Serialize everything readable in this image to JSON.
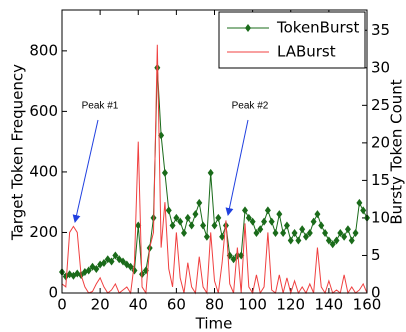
{
  "chart_data": {
    "type": "line",
    "xlabel": "Time",
    "ylabel": "Target Token Frequency",
    "y2label": "Bursty Token Count",
    "x": [
      0,
      2,
      4,
      6,
      8,
      10,
      12,
      14,
      16,
      18,
      20,
      22,
      24,
      26,
      28,
      30,
      32,
      34,
      36,
      38,
      40,
      42,
      44,
      46,
      48,
      50,
      52,
      54,
      56,
      58,
      60,
      62,
      64,
      66,
      68,
      70,
      72,
      74,
      76,
      78,
      80,
      82,
      84,
      86,
      88,
      90,
      92,
      94,
      96,
      98,
      100,
      102,
      104,
      106,
      108,
      110,
      112,
      114,
      116,
      118,
      120,
      122,
      124,
      126,
      128,
      130,
      132,
      134,
      136,
      138,
      140,
      142,
      144,
      146,
      148,
      150,
      152,
      154,
      156,
      158,
      160
    ],
    "series": [
      {
        "name": "TokenBurst",
        "color": "#1a6b1a",
        "axis": "y2",
        "marker": "diamond",
        "values": [
          2.8,
          2.2,
          2.5,
          2.3,
          2.6,
          2.4,
          2.8,
          3,
          3.5,
          3.2,
          3.8,
          4,
          4.5,
          4.2,
          5,
          4.5,
          4.2,
          3.8,
          3.5,
          3,
          9,
          2.5,
          3,
          6,
          10,
          30,
          21,
          16,
          11,
          9,
          10,
          9.5,
          8,
          10,
          9,
          10.5,
          12,
          9,
          7.5,
          16,
          9,
          10,
          7.5,
          9,
          5,
          4.5,
          5,
          5,
          11,
          10,
          9.5,
          8,
          8.5,
          9.5,
          11,
          9.5,
          8,
          10.5,
          8,
          9,
          7,
          8,
          7,
          8.5,
          7.5,
          8,
          9.5,
          10.5,
          9,
          8,
          7,
          6.5,
          7,
          8,
          7.5,
          8.5,
          7,
          8,
          12,
          11,
          10
        ]
      },
      {
        "name": "LABurst",
        "color": "#f04040",
        "marker": "none",
        "values": [
          30,
          20,
          200,
          220,
          200,
          60,
          20,
          0,
          5,
          30,
          50,
          20,
          0,
          10,
          30,
          0,
          10,
          20,
          0,
          100,
          500,
          20,
          0,
          150,
          200,
          820,
          150,
          300,
          80,
          20,
          200,
          50,
          0,
          100,
          20,
          0,
          120,
          20,
          0,
          200,
          40,
          0,
          100,
          240,
          30,
          0,
          150,
          0,
          230,
          20,
          0,
          60,
          0,
          20,
          200,
          10,
          0,
          60,
          0,
          50,
          0,
          40,
          0,
          20,
          0,
          30,
          0,
          150,
          20,
          0,
          40,
          0,
          10,
          0,
          60,
          0,
          20,
          0,
          10,
          30,
          0
        ]
      }
    ],
    "xlim": [
      0,
      160
    ],
    "xticks": [
      0,
      20,
      40,
      60,
      80,
      100,
      120,
      140,
      160
    ],
    "ylim": [
      0,
      935
    ],
    "yticks": [
      0,
      200,
      400,
      600,
      800
    ],
    "y2lim": [
      0,
      37.7
    ],
    "y2ticks": [
      0,
      5,
      10,
      15,
      20,
      25,
      30,
      35
    ],
    "legend": "upper right",
    "annotations": [
      "Peak #1",
      "Peak #2"
    ]
  }
}
